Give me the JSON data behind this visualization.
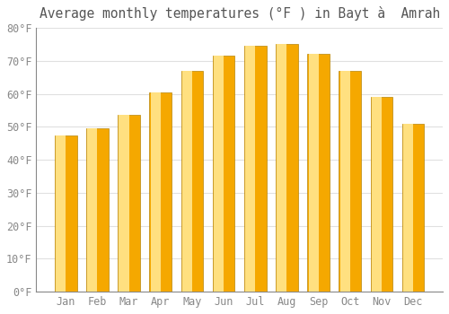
{
  "title": "Average monthly temperatures (°F ) in Bayt à  Amrah",
  "months": [
    "Jan",
    "Feb",
    "Mar",
    "Apr",
    "May",
    "Jun",
    "Jul",
    "Aug",
    "Sep",
    "Oct",
    "Nov",
    "Dec"
  ],
  "values": [
    47.5,
    49.5,
    53.5,
    60.5,
    67,
    71.5,
    74.5,
    75,
    72,
    67,
    59,
    51
  ],
  "bar_color_edge": "#F5A800",
  "bar_color_center": "#FFE080",
  "bar_edge_color": "#B8860B",
  "background_color": "#FFFFFF",
  "ylim": [
    0,
    80
  ],
  "yticks": [
    0,
    10,
    20,
    30,
    40,
    50,
    60,
    70,
    80
  ],
  "grid_color": "#E0E0E0",
  "title_fontsize": 10.5,
  "tick_fontsize": 8.5,
  "tick_color": "#888888",
  "title_color": "#555555"
}
